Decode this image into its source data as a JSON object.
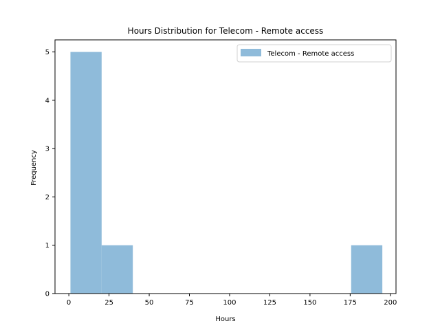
{
  "chart_data": {
    "type": "bar",
    "title": "Hours Distribution for Telecom - Remote access",
    "xlabel": "Hours",
    "ylabel": "Frequency",
    "xlim": [
      -8.6,
      203.5
    ],
    "ylim": [
      0,
      5.25
    ],
    "grid": false,
    "legend_position": "top-right",
    "x_ticks": [
      0,
      25,
      50,
      75,
      100,
      125,
      150,
      175,
      200
    ],
    "y_ticks": [
      0,
      1,
      2,
      3,
      4,
      5
    ],
    "series": [
      {
        "name": "Telecom - Remote access",
        "color": "#8fbbda",
        "bins": [
          {
            "start": 1.0,
            "end": 20.4,
            "count": 5
          },
          {
            "start": 20.4,
            "end": 39.8,
            "count": 1
          },
          {
            "start": 39.8,
            "end": 59.2,
            "count": 0
          },
          {
            "start": 59.2,
            "end": 78.6,
            "count": 0
          },
          {
            "start": 78.6,
            "end": 98.0,
            "count": 0
          },
          {
            "start": 98.0,
            "end": 117.4,
            "count": 0
          },
          {
            "start": 117.4,
            "end": 136.8,
            "count": 0
          },
          {
            "start": 136.8,
            "end": 156.2,
            "count": 0
          },
          {
            "start": 156.2,
            "end": 175.6,
            "count": 0
          },
          {
            "start": 175.6,
            "end": 195.0,
            "count": 1
          }
        ]
      }
    ]
  }
}
